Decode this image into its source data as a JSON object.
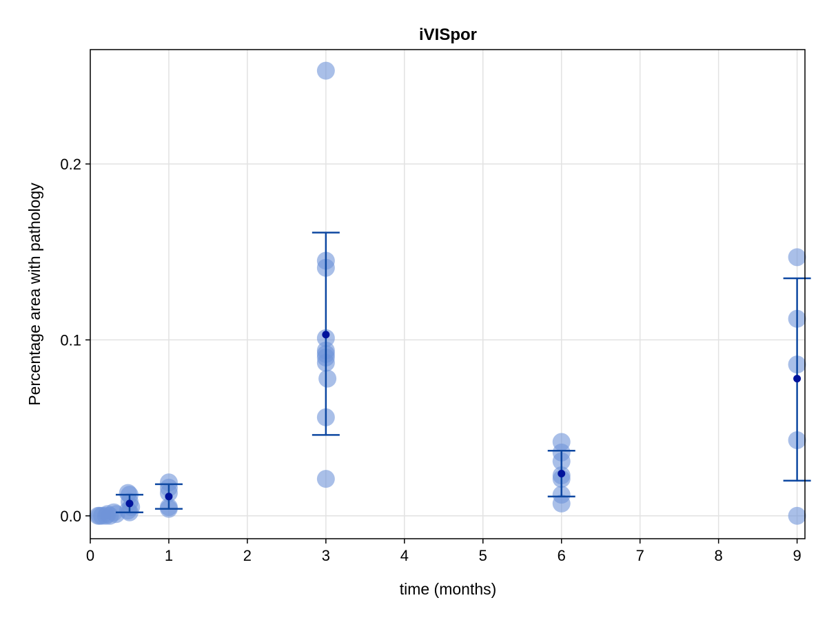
{
  "chart_data": {
    "type": "scatter",
    "title": "iVISpor",
    "xlabel": "time (months)",
    "ylabel": "Percentage area with pathology",
    "xlim": [
      0,
      9.1
    ],
    "ylim": [
      -0.013,
      0.265
    ],
    "x_ticks": [
      "0",
      "1",
      "2",
      "3",
      "4",
      "5",
      "6",
      "7",
      "8",
      "9"
    ],
    "y_ticks": [
      "0.0",
      "0.1",
      "0.2"
    ],
    "grid": true,
    "legend": "none",
    "colors": {
      "points": "#6f95d8",
      "points_opacity": 0.6,
      "error_bar": "#0d47a1",
      "mean": "#00139c",
      "grid": "#e2e2e2",
      "frame": "#000000"
    },
    "series": [
      {
        "role": "individual",
        "points": [
          {
            "x": 0.1,
            "y": 0.0
          },
          {
            "x": 0.12,
            "y": 0.0
          },
          {
            "x": 0.15,
            "y": 0.0
          },
          {
            "x": 0.2,
            "y": 0.0
          },
          {
            "x": 0.22,
            "y": 0.001
          },
          {
            "x": 0.25,
            "y": 0.0
          },
          {
            "x": 0.3,
            "y": 0.002
          },
          {
            "x": 0.33,
            "y": 0.001
          },
          {
            "x": 0.48,
            "y": 0.013
          },
          {
            "x": 0.5,
            "y": 0.012
          },
          {
            "x": 0.5,
            "y": 0.008
          },
          {
            "x": 0.52,
            "y": 0.005
          },
          {
            "x": 0.48,
            "y": 0.003
          },
          {
            "x": 0.5,
            "y": 0.002
          },
          {
            "x": 1.0,
            "y": 0.019
          },
          {
            "x": 1.0,
            "y": 0.016
          },
          {
            "x": 1.0,
            "y": 0.013
          },
          {
            "x": 1.0,
            "y": 0.005
          },
          {
            "x": 1.0,
            "y": 0.004
          },
          {
            "x": 3.0,
            "y": 0.253
          },
          {
            "x": 3.0,
            "y": 0.145
          },
          {
            "x": 3.0,
            "y": 0.141
          },
          {
            "x": 3.0,
            "y": 0.101
          },
          {
            "x": 3.0,
            "y": 0.094
          },
          {
            "x": 3.0,
            "y": 0.092
          },
          {
            "x": 3.0,
            "y": 0.09
          },
          {
            "x": 3.0,
            "y": 0.087
          },
          {
            "x": 3.02,
            "y": 0.078
          },
          {
            "x": 3.0,
            "y": 0.056
          },
          {
            "x": 3.0,
            "y": 0.021
          },
          {
            "x": 6.0,
            "y": 0.042
          },
          {
            "x": 6.0,
            "y": 0.036
          },
          {
            "x": 6.0,
            "y": 0.031
          },
          {
            "x": 6.0,
            "y": 0.023
          },
          {
            "x": 6.0,
            "y": 0.021
          },
          {
            "x": 6.0,
            "y": 0.012
          },
          {
            "x": 6.0,
            "y": 0.007
          },
          {
            "x": 9.0,
            "y": 0.147
          },
          {
            "x": 9.0,
            "y": 0.112
          },
          {
            "x": 9.0,
            "y": 0.086
          },
          {
            "x": 9.0,
            "y": 0.043
          },
          {
            "x": 9.0,
            "y": 0.0
          }
        ]
      },
      {
        "role": "mean_with_error",
        "points": [
          {
            "x": 0.5,
            "y": 0.007,
            "low": 0.002,
            "high": 0.012
          },
          {
            "x": 1.0,
            "y": 0.011,
            "low": 0.004,
            "high": 0.018
          },
          {
            "x": 3.0,
            "y": 0.103,
            "low": 0.046,
            "high": 0.161
          },
          {
            "x": 6.0,
            "y": 0.024,
            "low": 0.011,
            "high": 0.037
          },
          {
            "x": 9.0,
            "y": 0.078,
            "low": 0.02,
            "high": 0.135
          }
        ]
      }
    ]
  }
}
